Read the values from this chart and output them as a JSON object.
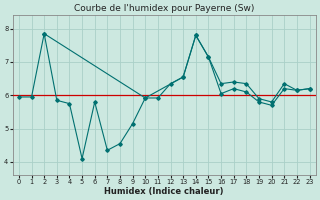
{
  "title": "Courbe de l'humidex pour Payerne (Sw)",
  "xlabel": "Humidex (Indice chaleur)",
  "bg_color": "#cce8e0",
  "grid_color": "#aad0c8",
  "line_color": "#007070",
  "red_line_color": "#cc0000",
  "xlim": [
    -0.5,
    23.5
  ],
  "ylim": [
    3.6,
    8.4
  ],
  "xticks": [
    0,
    1,
    2,
    3,
    4,
    5,
    6,
    7,
    8,
    9,
    10,
    11,
    12,
    13,
    14,
    15,
    16,
    17,
    18,
    19,
    20,
    21,
    22,
    23
  ],
  "yticks": [
    4,
    5,
    6,
    7,
    8
  ],
  "line1_x": [
    0,
    1,
    2,
    3,
    4,
    5,
    6,
    7,
    8,
    9,
    10,
    11,
    12,
    13,
    14,
    15,
    16,
    17,
    18,
    19,
    20,
    21,
    22,
    23
  ],
  "line1_y": [
    5.95,
    5.95,
    7.85,
    5.85,
    5.75,
    4.1,
    5.8,
    4.35,
    4.55,
    5.15,
    5.92,
    5.92,
    6.35,
    6.55,
    7.8,
    7.15,
    6.05,
    6.2,
    6.1,
    5.8,
    5.7,
    6.2,
    6.15,
    6.2
  ],
  "line2_x": [
    2,
    10,
    13,
    14,
    15,
    16,
    17,
    18,
    19,
    20,
    21,
    22,
    23
  ],
  "line2_y": [
    7.85,
    5.92,
    6.55,
    7.8,
    7.15,
    6.35,
    6.4,
    6.35,
    5.9,
    5.8,
    6.35,
    6.15,
    6.2
  ],
  "hline_y": 6.0,
  "title_fontsize": 6.5,
  "xlabel_fontsize": 6,
  "tick_fontsize": 4.8
}
